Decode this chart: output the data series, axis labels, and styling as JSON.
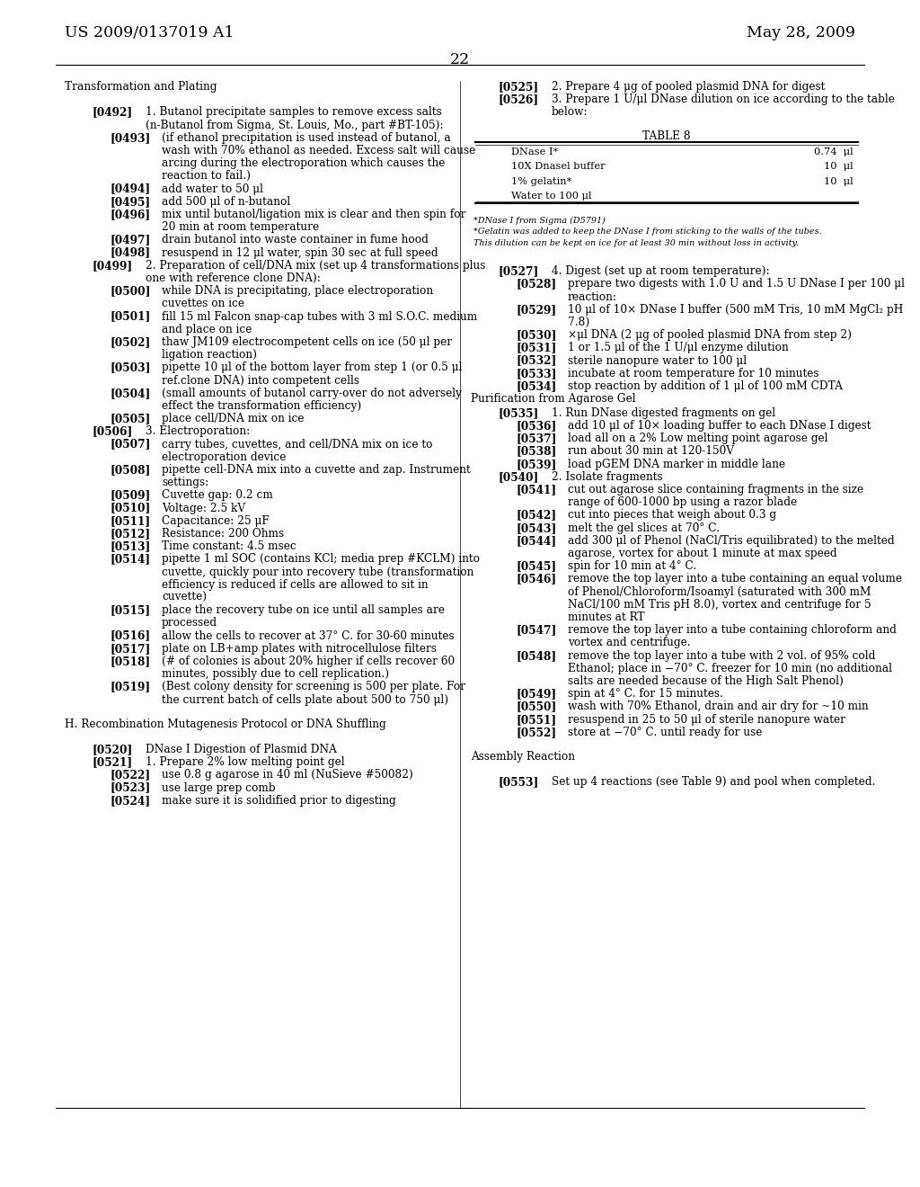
{
  "background_color": "#ffffff",
  "header_left": "US 2009/0137019 A1",
  "header_right": "May 28, 2009",
  "page_number": "22",
  "left_column": [
    {
      "type": "section",
      "text": "Transformation and Plating"
    },
    {
      "type": "blank"
    },
    {
      "type": "para",
      "tag": "[0492]",
      "indent": 1,
      "text": "1. Butanol precipitate samples to remove excess salts (n-Butanol from Sigma, St. Louis, Mo., part #BT-105):"
    },
    {
      "type": "para",
      "tag": "[0493]",
      "indent": 2,
      "text": "(if ethanol precipitation is used instead of butanol, a wash with 70% ethanol as needed. Excess salt will cause arcing during the electroporation which causes the reaction to fail.)"
    },
    {
      "type": "para",
      "tag": "[0494]",
      "indent": 2,
      "text": "add water to 50 μl"
    },
    {
      "type": "para",
      "tag": "[0495]",
      "indent": 2,
      "text": "add 500 μl of n-butanol"
    },
    {
      "type": "para",
      "tag": "[0496]",
      "indent": 2,
      "text": "mix until butanol/ligation mix is clear and then spin for 20 min at room temperature"
    },
    {
      "type": "para",
      "tag": "[0497]",
      "indent": 2,
      "text": "drain butanol into waste container in fume hood"
    },
    {
      "type": "para",
      "tag": "[0498]",
      "indent": 2,
      "text": "resuspend in 12 μl water, spin 30 sec at full speed"
    },
    {
      "type": "para",
      "tag": "[0499]",
      "indent": 1,
      "text": "2. Preparation of cell/DNA mix (set up 4 transformations plus one with reference clone DNA):"
    },
    {
      "type": "para",
      "tag": "[0500]",
      "indent": 2,
      "text": "while DNA is precipitating, place electroporation cuvettes on ice"
    },
    {
      "type": "para",
      "tag": "[0501]",
      "indent": 2,
      "text": "fill 15 ml Falcon snap-cap tubes with 3 ml S.O.C. medium and place on ice"
    },
    {
      "type": "para",
      "tag": "[0502]",
      "indent": 2,
      "text": "thaw JM109 electrocompetent cells on ice (50 μl per ligation reaction)"
    },
    {
      "type": "para",
      "tag": "[0503]",
      "indent": 2,
      "text": "pipette 10 μl of the bottom layer from step 1 (or 0.5 μl ref.clone DNA) into competent cells"
    },
    {
      "type": "para",
      "tag": "[0504]",
      "indent": 2,
      "text": "(small amounts of butanol carry-over do not adversely effect the transformation efficiency)"
    },
    {
      "type": "para",
      "tag": "[0505]",
      "indent": 2,
      "text": "place cell/DNA mix on ice"
    },
    {
      "type": "para",
      "tag": "[0506]",
      "indent": 1,
      "text": "3. Electroporation:"
    },
    {
      "type": "para",
      "tag": "[0507]",
      "indent": 2,
      "text": "carry tubes, cuvettes, and cell/DNA mix on ice to electroporation device"
    },
    {
      "type": "para",
      "tag": "[0508]",
      "indent": 2,
      "text": "pipette cell-DNA mix into a cuvette and zap. Instrument settings:"
    },
    {
      "type": "para",
      "tag": "[0509]",
      "indent": 2,
      "text": "Cuvette gap: 0.2 cm"
    },
    {
      "type": "para",
      "tag": "[0510]",
      "indent": 2,
      "text": "Voltage: 2.5 kV"
    },
    {
      "type": "para",
      "tag": "[0511]",
      "indent": 2,
      "text": "Capacitance: 25 μF"
    },
    {
      "type": "para",
      "tag": "[0512]",
      "indent": 2,
      "text": "Resistance: 200 Ohms"
    },
    {
      "type": "para",
      "tag": "[0513]",
      "indent": 2,
      "text": "Time constant: 4.5 msec"
    },
    {
      "type": "para",
      "tag": "[0514]",
      "indent": 2,
      "text": "pipette 1 ml SOC (contains KCl; media prep #KCLM) into cuvette, quickly pour into recovery tube (transformation efficiency is reduced if cells are allowed to sit in cuvette)"
    },
    {
      "type": "para",
      "tag": "[0515]",
      "indent": 2,
      "text": "place the recovery tube on ice until all samples are processed"
    },
    {
      "type": "para",
      "tag": "[0516]",
      "indent": 2,
      "text": "allow the cells to recover at 37° C. for 30-60 minutes"
    },
    {
      "type": "para",
      "tag": "[0517]",
      "indent": 2,
      "text": "plate on LB+amp plates with nitrocellulose filters"
    },
    {
      "type": "para",
      "tag": "[0518]",
      "indent": 2,
      "text": "(# of colonies is about 20% higher if cells recover 60 minutes, possibly due to cell replication.)"
    },
    {
      "type": "para",
      "tag": "[0519]",
      "indent": 2,
      "text": "(Best colony density for screening is 500 per plate. For the current batch of cells plate about 500 to 750 μl)"
    },
    {
      "type": "blank"
    },
    {
      "type": "section",
      "text": "H. Recombination Mutagenesis Protocol or DNA Shuffling"
    },
    {
      "type": "blank"
    },
    {
      "type": "para",
      "tag": "[0520]",
      "indent": 1,
      "text": "DNase I Digestion of Plasmid DNA"
    },
    {
      "type": "para",
      "tag": "[0521]",
      "indent": 1,
      "text": "1. Prepare 2% low melting point gel"
    },
    {
      "type": "para",
      "tag": "[0522]",
      "indent": 2,
      "text": "use 0.8 g agarose in 40 ml (NuSieve #50082)"
    },
    {
      "type": "para",
      "tag": "[0523]",
      "indent": 2,
      "text": "use large prep comb"
    },
    {
      "type": "para",
      "tag": "[0524]",
      "indent": 2,
      "text": "make sure it is solidified prior to digesting"
    }
  ],
  "right_column": [
    {
      "type": "para",
      "tag": "[0525]",
      "indent": 1,
      "text": "2. Prepare 4 μg of pooled plasmid DNA for digest"
    },
    {
      "type": "para",
      "tag": "[0526]",
      "indent": 1,
      "text": "3. Prepare 1 U/μl DNase dilution on ice according to the table below:"
    },
    {
      "type": "blank"
    },
    {
      "type": "table",
      "title": "TABLE 8",
      "rows": [
        [
          "DNase I*",
          "0.74  μl"
        ],
        [
          "10X Dnasel buffer",
          "10  μl"
        ],
        [
          "1% gelatin*",
          "10  μl"
        ],
        [
          "Water to 100 μl",
          ""
        ]
      ],
      "footnotes": [
        "*DNase I from Sigma (D5791)",
        "*Gelatin was added to keep the DNase I from sticking to the walls of the tubes.",
        "This dilution can be kept on ice for at least 30 min without loss in activity."
      ]
    },
    {
      "type": "blank"
    },
    {
      "type": "para",
      "tag": "[0527]",
      "indent": 1,
      "text": "4. Digest (set up at room temperature):"
    },
    {
      "type": "para",
      "tag": "[0528]",
      "indent": 2,
      "text": "prepare two digests with 1.0 U and 1.5 U DNase I per 100 μl reaction:"
    },
    {
      "type": "para",
      "tag": "[0529]",
      "indent": 2,
      "text": "10 μl of 10× DNase I buffer (500 mM Tris, 10 mM MgCl₂ pH 7.8)"
    },
    {
      "type": "para",
      "tag": "[0530]",
      "indent": 2,
      "text": "×μl DNA (2 μg of pooled plasmid DNA from step 2)"
    },
    {
      "type": "para",
      "tag": "[0531]",
      "indent": 2,
      "text": "1 or 1.5 μl of the 1 U/μl enzyme dilution"
    },
    {
      "type": "para",
      "tag": "[0532]",
      "indent": 2,
      "text": "sterile nanopure water to 100 μl"
    },
    {
      "type": "para",
      "tag": "[0533]",
      "indent": 2,
      "text": "incubate at room temperature for 10 minutes"
    },
    {
      "type": "para",
      "tag": "[0534]",
      "indent": 2,
      "text": "stop reaction by addition of 1 μl of 100 mM CDTA"
    },
    {
      "type": "section",
      "text": "Purification from Agarose Gel"
    },
    {
      "type": "para",
      "tag": "[0535]",
      "indent": 1,
      "text": "1. Run DNase digested fragments on gel"
    },
    {
      "type": "para",
      "tag": "[0536]",
      "indent": 2,
      "text": "add 10 μl of 10× loading buffer to each DNase I digest"
    },
    {
      "type": "para",
      "tag": "[0537]",
      "indent": 2,
      "text": "load all on a 2% Low melting point agarose gel"
    },
    {
      "type": "para",
      "tag": "[0538]",
      "indent": 2,
      "text": "run about 30 min at 120-150V"
    },
    {
      "type": "para",
      "tag": "[0539]",
      "indent": 2,
      "text": "load pGEM DNA marker in middle lane"
    },
    {
      "type": "para",
      "tag": "[0540]",
      "indent": 1,
      "text": "2. Isolate fragments"
    },
    {
      "type": "para",
      "tag": "[0541]",
      "indent": 2,
      "text": "cut out agarose slice containing fragments in the size range of 600-1000 bp using a razor blade"
    },
    {
      "type": "para",
      "tag": "[0542]",
      "indent": 2,
      "text": "cut into pieces that weigh about 0.3 g"
    },
    {
      "type": "para",
      "tag": "[0543]",
      "indent": 2,
      "text": "melt the gel slices at 70° C."
    },
    {
      "type": "para",
      "tag": "[0544]",
      "indent": 2,
      "text": "add 300 μl of Phenol (NaCl/Tris equilibrated) to the melted agarose, vortex for about 1 minute at max speed"
    },
    {
      "type": "para",
      "tag": "[0545]",
      "indent": 2,
      "text": "spin for 10 min at 4° C."
    },
    {
      "type": "para",
      "tag": "[0546]",
      "indent": 2,
      "text": "remove the top layer into a tube containing an equal volume of Phenol/Chloroform/Isoamyl (saturated with 300 mM NaCl/100 mM Tris pH 8.0), vortex and centrifuge for 5 minutes at RT"
    },
    {
      "type": "para",
      "tag": "[0547]",
      "indent": 2,
      "text": "remove the top layer into a tube containing chloroform and vortex and centrifuge."
    },
    {
      "type": "para",
      "tag": "[0548]",
      "indent": 2,
      "text": "remove the top layer into a tube with 2 vol. of 95% cold Ethanol; place in −70° C. freezer for 10 min (no additional salts are needed because of the High Salt Phenol)"
    },
    {
      "type": "para",
      "tag": "[0549]",
      "indent": 2,
      "text": "spin at 4° C. for 15 minutes."
    },
    {
      "type": "para",
      "tag": "[0550]",
      "indent": 2,
      "text": "wash with 70% Ethanol, drain and air dry for ~10 min"
    },
    {
      "type": "para",
      "tag": "[0551]",
      "indent": 2,
      "text": "resuspend in 25 to 50 μl of sterile nanopure water"
    },
    {
      "type": "para",
      "tag": "[0552]",
      "indent": 2,
      "text": "store at −70° C. until ready for use"
    },
    {
      "type": "blank"
    },
    {
      "type": "section",
      "text": "Assembly Reaction"
    },
    {
      "type": "blank"
    },
    {
      "type": "para",
      "tag": "[0553]",
      "indent": 1,
      "text": "Set up 4 reactions (see Table 9) and pool when completed."
    }
  ]
}
